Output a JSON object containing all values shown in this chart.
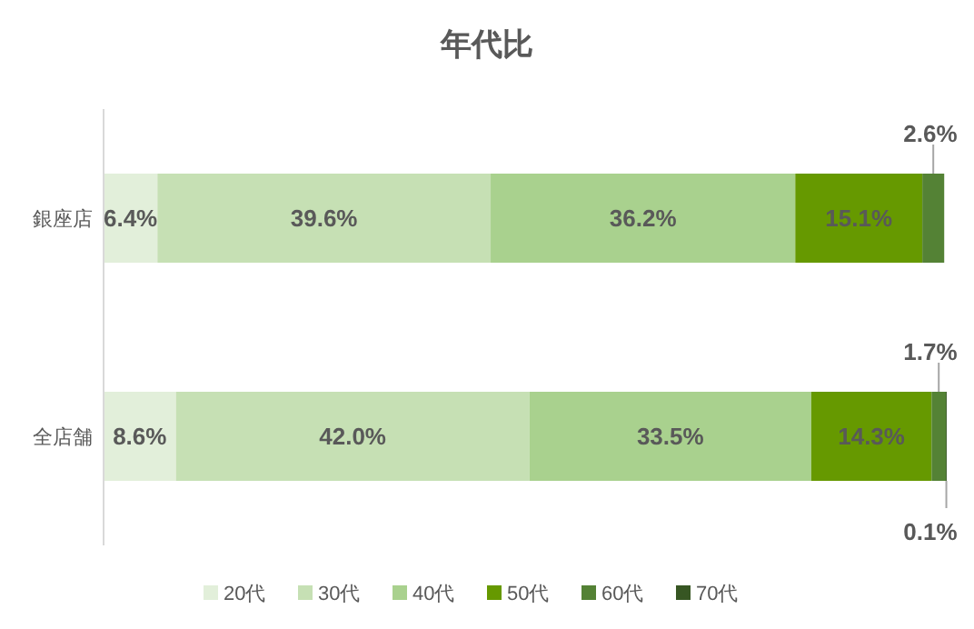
{
  "chart_data": {
    "type": "bar",
    "orientation": "horizontal",
    "stacked": true,
    "title": "年代比",
    "categories": [
      "銀座店",
      "全店舗"
    ],
    "legend": "bottom",
    "grid": false,
    "series": [
      {
        "name": "20代",
        "color": "#e2efda",
        "values": [
          6.4,
          8.6
        ],
        "value_labels": [
          "6.4%",
          "8.6%"
        ]
      },
      {
        "name": "30代",
        "color": "#c6e0b4",
        "values": [
          39.6,
          42.0
        ],
        "value_labels": [
          "39.6%",
          "42.0%"
        ]
      },
      {
        "name": "40代",
        "color": "#a9d18e",
        "values": [
          36.2,
          33.5
        ],
        "value_labels": [
          "36.2%",
          "33.5%"
        ]
      },
      {
        "name": "50代",
        "color": "#669900",
        "values": [
          15.1,
          14.3
        ],
        "value_labels": [
          "15.1%",
          "14.3%"
        ]
      },
      {
        "name": "60代",
        "color": "#548235",
        "values": [
          2.6,
          1.7
        ],
        "value_labels": [
          "2.6%",
          "1.7%"
        ]
      },
      {
        "name": "70代",
        "color": "#375623",
        "values": [
          null,
          0.1
        ],
        "value_labels": [
          null,
          "0.1%"
        ]
      }
    ]
  }
}
